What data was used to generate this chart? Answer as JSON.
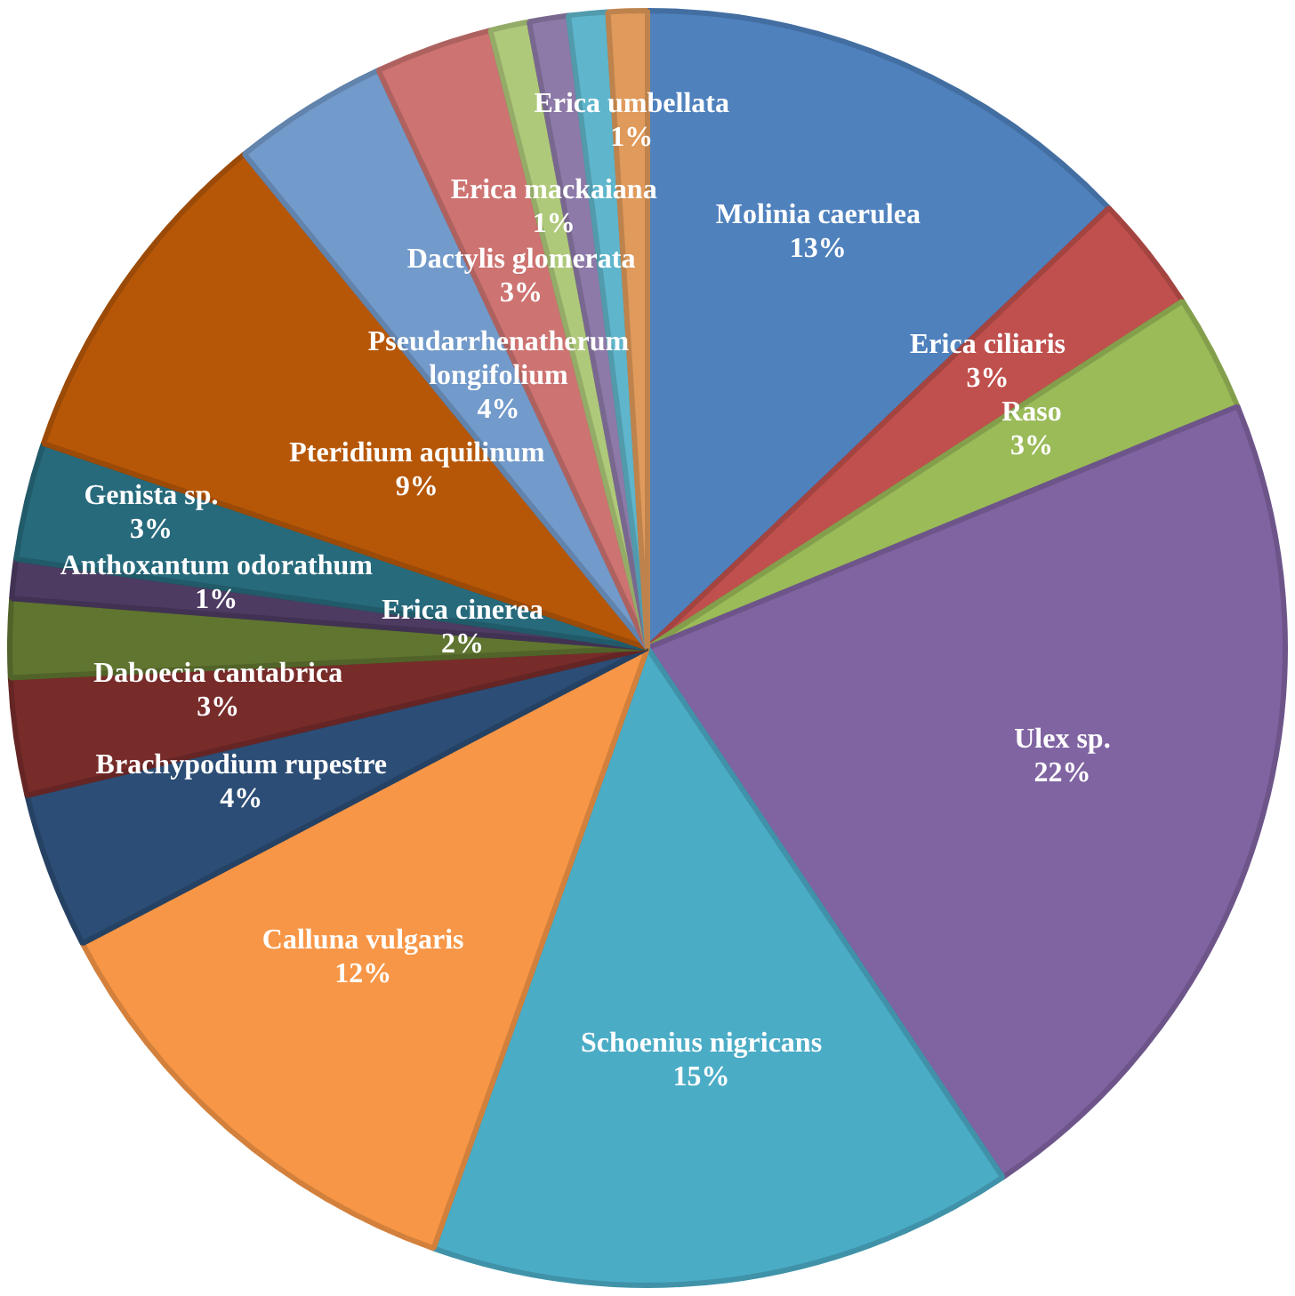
{
  "chart_data": {
    "type": "pie",
    "categories": [
      "Molinia caerulea",
      "Erica ciliaris",
      "Raso",
      "Ulex sp.",
      "Schoenius nigricans",
      "Calluna vulgaris",
      "Brachypodium rupestre",
      "Daboecia cantabrica",
      "Erica cinerea",
      "Anthoxantum odorathum",
      "Genista sp.",
      "Pteridium aquilinum",
      "Pseudarrhenatherum longifolium",
      "Dactylis glomerata",
      "Erica mackaiana",
      null,
      null,
      "Erica umbellata"
    ],
    "values": [
      13,
      3,
      3,
      22,
      15,
      12,
      4,
      3,
      2,
      1,
      3,
      9,
      4,
      3,
      1,
      1,
      1,
      1
    ],
    "value_labels": [
      "13%",
      "3%",
      "3%",
      "22%",
      "15%",
      "12%",
      "4%",
      "3%",
      "2%",
      "1%",
      "3%",
      "9%",
      "4%",
      "3%",
      "1%",
      null,
      null,
      "1%"
    ],
    "colors": [
      "#4f81bd",
      "#c0504d",
      "#9bbb59",
      "#8064a2",
      "#4bacc6",
      "#f79646",
      "#2c4d75",
      "#772c2a",
      "#5f7530",
      "#4d3b62",
      "#276a7c",
      "#b65708",
      "#729aca",
      "#cd7371",
      "#afc97a",
      "#8d7aa8",
      "#5fb6cc",
      "#e09a5b"
    ]
  }
}
